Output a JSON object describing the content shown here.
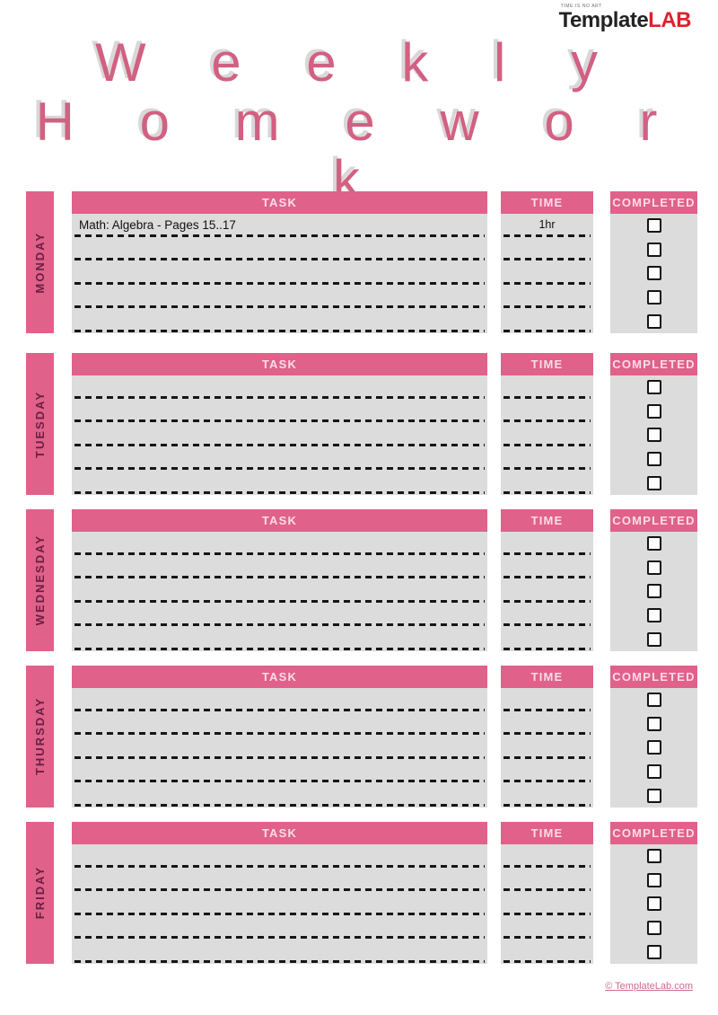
{
  "logo": {
    "tagline": "TIME IS NO ART",
    "brand_black": "Template",
    "brand_red": "LAB"
  },
  "title": {
    "line1": "W e e k l y",
    "line2": "H o m e w o r k"
  },
  "table": {
    "headers": {
      "task": "TASK",
      "time": "TIME",
      "completed": "COMPLETED"
    }
  },
  "days": [
    {
      "name": "MONDAY",
      "rows": [
        {
          "task": "Math: Algebra - Pages 15..17",
          "time": "1hr",
          "completed": false
        },
        {
          "task": "",
          "time": "",
          "completed": false
        },
        {
          "task": "",
          "time": "",
          "completed": false
        },
        {
          "task": "",
          "time": "",
          "completed": false
        },
        {
          "task": "",
          "time": "",
          "completed": false
        }
      ]
    },
    {
      "name": "TUESDAY",
      "rows": [
        {
          "task": "",
          "time": "",
          "completed": false
        },
        {
          "task": "",
          "time": "",
          "completed": false
        },
        {
          "task": "",
          "time": "",
          "completed": false
        },
        {
          "task": "",
          "time": "",
          "completed": false
        },
        {
          "task": "",
          "time": "",
          "completed": false
        }
      ]
    },
    {
      "name": "WEDNESDAY",
      "rows": [
        {
          "task": "",
          "time": "",
          "completed": false
        },
        {
          "task": "",
          "time": "",
          "completed": false
        },
        {
          "task": "",
          "time": "",
          "completed": false
        },
        {
          "task": "",
          "time": "",
          "completed": false
        },
        {
          "task": "",
          "time": "",
          "completed": false
        }
      ]
    },
    {
      "name": "THURSDAY",
      "rows": [
        {
          "task": "",
          "time": "",
          "completed": false
        },
        {
          "task": "",
          "time": "",
          "completed": false
        },
        {
          "task": "",
          "time": "",
          "completed": false
        },
        {
          "task": "",
          "time": "",
          "completed": false
        },
        {
          "task": "",
          "time": "",
          "completed": false
        }
      ]
    },
    {
      "name": "FRIDAY",
      "rows": [
        {
          "task": "",
          "time": "",
          "completed": false
        },
        {
          "task": "",
          "time": "",
          "completed": false
        },
        {
          "task": "",
          "time": "",
          "completed": false
        },
        {
          "task": "",
          "time": "",
          "completed": false
        },
        {
          "task": "",
          "time": "",
          "completed": false
        }
      ]
    }
  ],
  "footer": {
    "copyright": "© TemplateLab.com"
  },
  "colors": {
    "pink": "#e0618a",
    "header_text": "#fbdce8",
    "day_text": "#6a1f3f",
    "row_bg": "#dcdcdc",
    "dash": "#161616",
    "task_text": "#111111",
    "title_pink": "#d26082",
    "title_shadow": "#d8d8d8",
    "logo_black": "#232323",
    "logo_red": "#d9232e",
    "footer_pink": "#c96d90"
  }
}
